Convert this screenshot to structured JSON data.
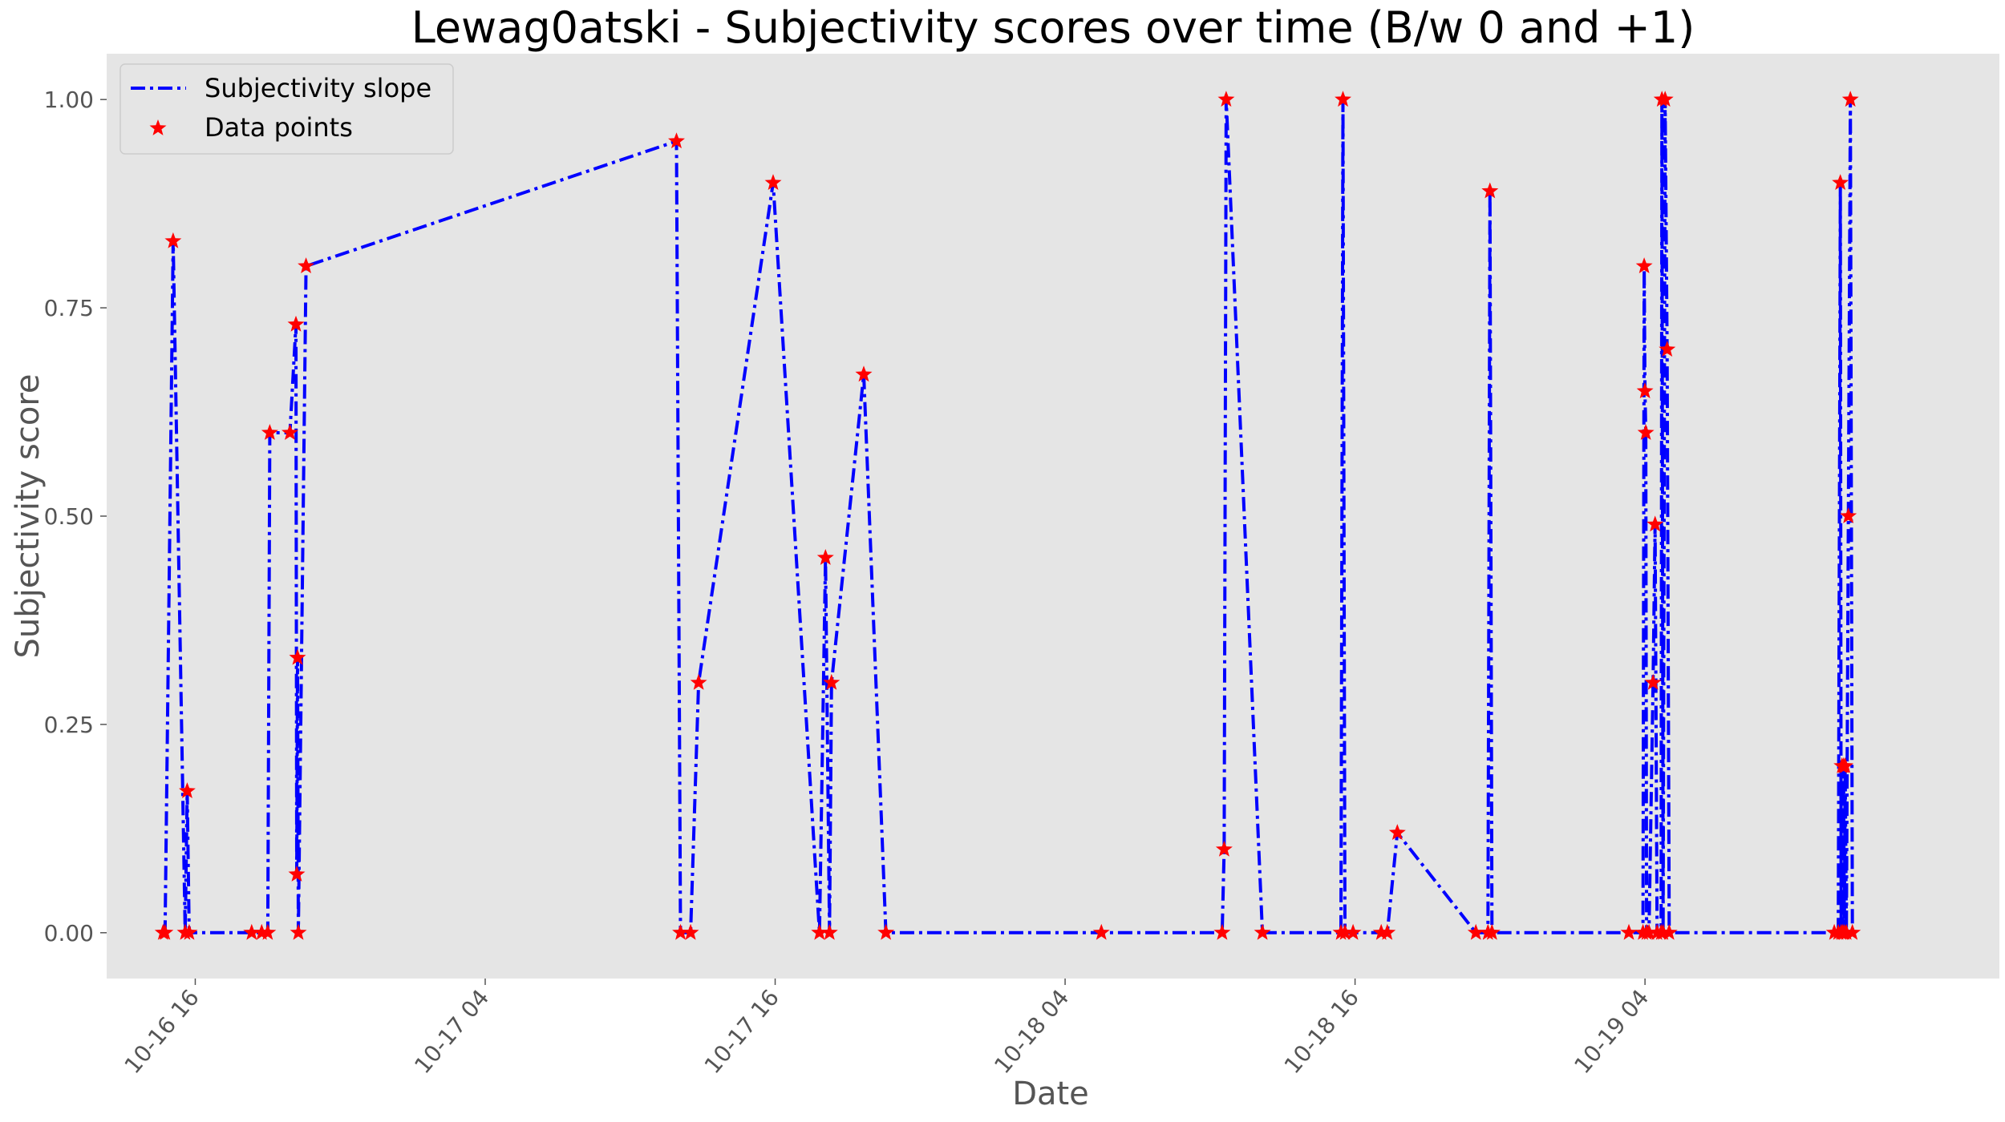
{
  "chart_data": {
    "type": "line",
    "title": "Lewag0atski - Subjectivity scores over time (B/w 0 and +1)",
    "xlabel": "Date",
    "ylabel": "Subjectivity score",
    "x_unit": "datetime (October, year not shown)",
    "xlim": [
      "10-16 12:20",
      "10-19 18:40"
    ],
    "ylim": [
      -0.055,
      1.055
    ],
    "yticks": [
      0.0,
      0.25,
      0.5,
      0.75,
      1.0
    ],
    "ytick_labels": [
      "0.00",
      "0.25",
      "0.50",
      "0.75",
      "1.00"
    ],
    "xticks": [
      "10-16 16:00",
      "10-17 04:00",
      "10-17 16:00",
      "10-18 04:00",
      "10-18 16:00",
      "10-19 04:00"
    ],
    "xtick_labels": [
      "10-16 16",
      "10-17 04",
      "10-17 16",
      "10-18 04",
      "10-18 16",
      "10-19 04"
    ],
    "grid": false,
    "legend_position": "top-left",
    "background": "#e5e5e5",
    "series": [
      {
        "name": "Subjectivity slope",
        "style": "dash-dot line",
        "color": "#0000ff",
        "points": [
          [
            "10-16 14:40",
            0.0
          ],
          [
            "10-16 14:45",
            0.0
          ],
          [
            "10-16 15:05",
            0.83
          ],
          [
            "10-16 15:35",
            0.0
          ],
          [
            "10-16 15:40",
            0.17
          ],
          [
            "10-16 15:45",
            0.0
          ],
          [
            "10-16 18:20",
            0.0
          ],
          [
            "10-16 18:45",
            0.0
          ],
          [
            "10-16 19:00",
            0.0
          ],
          [
            "10-16 19:05",
            0.6
          ],
          [
            "10-16 19:55",
            0.6
          ],
          [
            "10-16 20:10",
            0.73
          ],
          [
            "10-16 20:12",
            0.07
          ],
          [
            "10-16 20:14",
            0.33
          ],
          [
            "10-16 20:16",
            0.0
          ],
          [
            "10-16 20:35",
            0.8
          ],
          [
            "10-17 11:55",
            0.95
          ],
          [
            "10-17 12:05",
            0.0
          ],
          [
            "10-17 12:30",
            0.0
          ],
          [
            "10-17 12:50",
            0.3
          ],
          [
            "10-17 15:55",
            0.9
          ],
          [
            "10-17 17:50",
            0.0
          ],
          [
            "10-17 18:05",
            0.45
          ],
          [
            "10-17 18:15",
            0.0
          ],
          [
            "10-17 18:20",
            0.3
          ],
          [
            "10-17 19:40",
            0.67
          ],
          [
            "10-17 20:35",
            0.0
          ],
          [
            "10-18 05:30",
            0.0
          ],
          [
            "10-18 10:30",
            0.0
          ],
          [
            "10-18 10:35",
            0.1
          ],
          [
            "10-18 10:40",
            1.0
          ],
          [
            "10-18 12:10",
            0.0
          ],
          [
            "10-18 15:25",
            0.0
          ],
          [
            "10-18 15:30",
            1.0
          ],
          [
            "10-18 15:35",
            0.0
          ],
          [
            "10-18 15:55",
            0.0
          ],
          [
            "10-18 17:05",
            0.0
          ],
          [
            "10-18 17:20",
            0.0
          ],
          [
            "10-18 17:45",
            0.12
          ],
          [
            "10-18 21:00",
            0.0
          ],
          [
            "10-18 21:30",
            0.0
          ],
          [
            "10-18 21:35",
            0.89
          ],
          [
            "10-18 21:40",
            0.0
          ],
          [
            "10-19 03:20",
            0.0
          ],
          [
            "10-19 03:55",
            0.0
          ],
          [
            "10-19 03:58",
            0.8
          ],
          [
            "10-19 04:00",
            0.65
          ],
          [
            "10-19 04:02",
            0.6
          ],
          [
            "10-19 04:04",
            0.0
          ],
          [
            "10-19 04:10",
            0.0
          ],
          [
            "10-19 04:20",
            0.3
          ],
          [
            "10-19 04:25",
            0.49
          ],
          [
            "10-19 04:30",
            0.0
          ],
          [
            "10-19 04:40",
            0.0
          ],
          [
            "10-19 04:42",
            1.0
          ],
          [
            "10-19 04:45",
            0.0
          ],
          [
            "10-19 04:50",
            1.0
          ],
          [
            "10-19 04:55",
            0.7
          ],
          [
            "10-19 05:00",
            0.0
          ],
          [
            "10-19 11:50",
            0.0
          ],
          [
            "10-19 12:00",
            0.0
          ],
          [
            "10-19 12:05",
            0.9
          ],
          [
            "10-19 12:07",
            0.0
          ],
          [
            "10-19 12:09",
            0.2
          ],
          [
            "10-19 12:11",
            0.0
          ],
          [
            "10-19 12:13",
            0.2
          ],
          [
            "10-19 12:15",
            0.0
          ],
          [
            "10-19 12:17",
            0.2
          ],
          [
            "10-19 12:20",
            0.0
          ],
          [
            "10-19 12:25",
            0.5
          ],
          [
            "10-19 12:30",
            1.0
          ],
          [
            "10-19 12:35",
            0.0
          ]
        ]
      },
      {
        "name": "Data points",
        "style": "star markers",
        "color": "#ff0000",
        "same_points_as": "Subjectivity slope"
      }
    ]
  }
}
